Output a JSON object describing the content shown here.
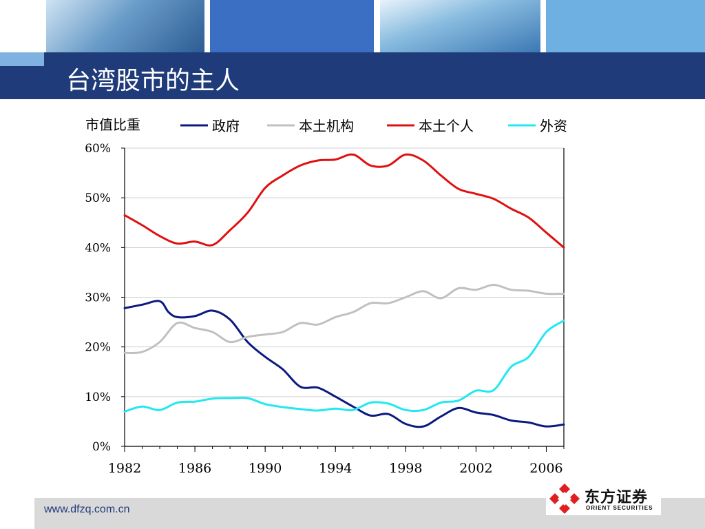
{
  "slide": {
    "title": "台湾股市的主人",
    "footer_url": "www.dfzq.com.cn"
  },
  "logo": {
    "name_cn": "东方证券",
    "name_en": "ORIENT SECURITIES",
    "icon": "orient-securities-diamond-icon"
  },
  "colors": {
    "title_bar": "#1f3b7a",
    "government": "#0a1a80",
    "local_institutions": "#c0c0c0",
    "local_individuals": "#e01010",
    "foreign": "#22e8f0"
  },
  "chart_data": {
    "type": "line",
    "ylabel": "市值比重",
    "xlabel": "",
    "xlim": [
      1982,
      2007
    ],
    "ylim": [
      0,
      60
    ],
    "xticks": [
      "1982",
      "1986",
      "1990",
      "1994",
      "1998",
      "2002",
      "2006"
    ],
    "yticks": [
      "0%",
      "10%",
      "20%",
      "30%",
      "40%",
      "50%",
      "60%"
    ],
    "grid": "horizontal",
    "legend_position": "top",
    "series": [
      {
        "name": "政府",
        "color": "#0a1a80",
        "points": [
          [
            1982,
            27.8
          ],
          [
            1983,
            28.5
          ],
          [
            1984,
            29.2
          ],
          [
            1984.5,
            27
          ],
          [
            1985,
            26
          ],
          [
            1986,
            26.2
          ],
          [
            1987,
            27.3
          ],
          [
            1988,
            25.5
          ],
          [
            1989,
            21
          ],
          [
            1990,
            18
          ],
          [
            1991,
            15.5
          ],
          [
            1992,
            12
          ],
          [
            1993,
            11.8
          ],
          [
            1994,
            10
          ],
          [
            1995,
            8
          ],
          [
            1996,
            6.2
          ],
          [
            1997,
            6.5
          ],
          [
            1998,
            4.5
          ],
          [
            1999,
            4
          ],
          [
            2000,
            6
          ],
          [
            2001,
            7.7
          ],
          [
            2002,
            6.8
          ],
          [
            2003,
            6.3
          ],
          [
            2004,
            5.2
          ],
          [
            2005,
            4.8
          ],
          [
            2006,
            4
          ],
          [
            2007,
            4.4
          ]
        ]
      },
      {
        "name": "本土机构",
        "color": "#c0c0c0",
        "points": [
          [
            1982,
            18.8
          ],
          [
            1983,
            19
          ],
          [
            1984,
            21
          ],
          [
            1985,
            24.8
          ],
          [
            1986,
            23.8
          ],
          [
            1987,
            23
          ],
          [
            1988,
            21
          ],
          [
            1989,
            22
          ],
          [
            1990,
            22.5
          ],
          [
            1991,
            23
          ],
          [
            1992,
            24.8
          ],
          [
            1993,
            24.5
          ],
          [
            1994,
            26
          ],
          [
            1995,
            27
          ],
          [
            1996,
            28.8
          ],
          [
            1997,
            28.8
          ],
          [
            1998,
            30
          ],
          [
            1999,
            31.2
          ],
          [
            2000,
            29.8
          ],
          [
            2001,
            31.8
          ],
          [
            2002,
            31.5
          ],
          [
            2003,
            32.5
          ],
          [
            2004,
            31.5
          ],
          [
            2005,
            31.3
          ],
          [
            2006,
            30.7
          ],
          [
            2007,
            30.7
          ]
        ]
      },
      {
        "name": "本土个人",
        "color": "#e01010",
        "points": [
          [
            1982,
            46.5
          ],
          [
            1983,
            44.5
          ],
          [
            1984,
            42.3
          ],
          [
            1985,
            40.8
          ],
          [
            1986,
            41.2
          ],
          [
            1987,
            40.5
          ],
          [
            1988,
            43.5
          ],
          [
            1989,
            47
          ],
          [
            1990,
            52
          ],
          [
            1991,
            54.5
          ],
          [
            1992,
            56.5
          ],
          [
            1993,
            57.5
          ],
          [
            1994,
            57.7
          ],
          [
            1995,
            58.7
          ],
          [
            1996,
            56.5
          ],
          [
            1997,
            56.5
          ],
          [
            1998,
            58.7
          ],
          [
            1999,
            57.5
          ],
          [
            2000,
            54.5
          ],
          [
            2001,
            51.8
          ],
          [
            2002,
            50.8
          ],
          [
            2003,
            49.8
          ],
          [
            2004,
            47.8
          ],
          [
            2005,
            46
          ],
          [
            2006,
            43
          ],
          [
            2007,
            40
          ]
        ]
      },
      {
        "name": "外资",
        "color": "#22e8f0",
        "points": [
          [
            1982,
            7
          ],
          [
            1983,
            8
          ],
          [
            1984,
            7.3
          ],
          [
            1985,
            8.8
          ],
          [
            1986,
            9
          ],
          [
            1987,
            9.6
          ],
          [
            1988,
            9.7
          ],
          [
            1989,
            9.7
          ],
          [
            1990,
            8.5
          ],
          [
            1991,
            7.9
          ],
          [
            1992,
            7.5
          ],
          [
            1993,
            7.2
          ],
          [
            1994,
            7.6
          ],
          [
            1995,
            7.3
          ],
          [
            1996,
            8.8
          ],
          [
            1997,
            8.6
          ],
          [
            1998,
            7.3
          ],
          [
            1999,
            7.3
          ],
          [
            2000,
            8.8
          ],
          [
            2001,
            9.2
          ],
          [
            2002,
            11.2
          ],
          [
            2003,
            11.3
          ],
          [
            2004,
            16
          ],
          [
            2005,
            18
          ],
          [
            2006,
            23
          ],
          [
            2007,
            25.3
          ]
        ]
      }
    ]
  }
}
